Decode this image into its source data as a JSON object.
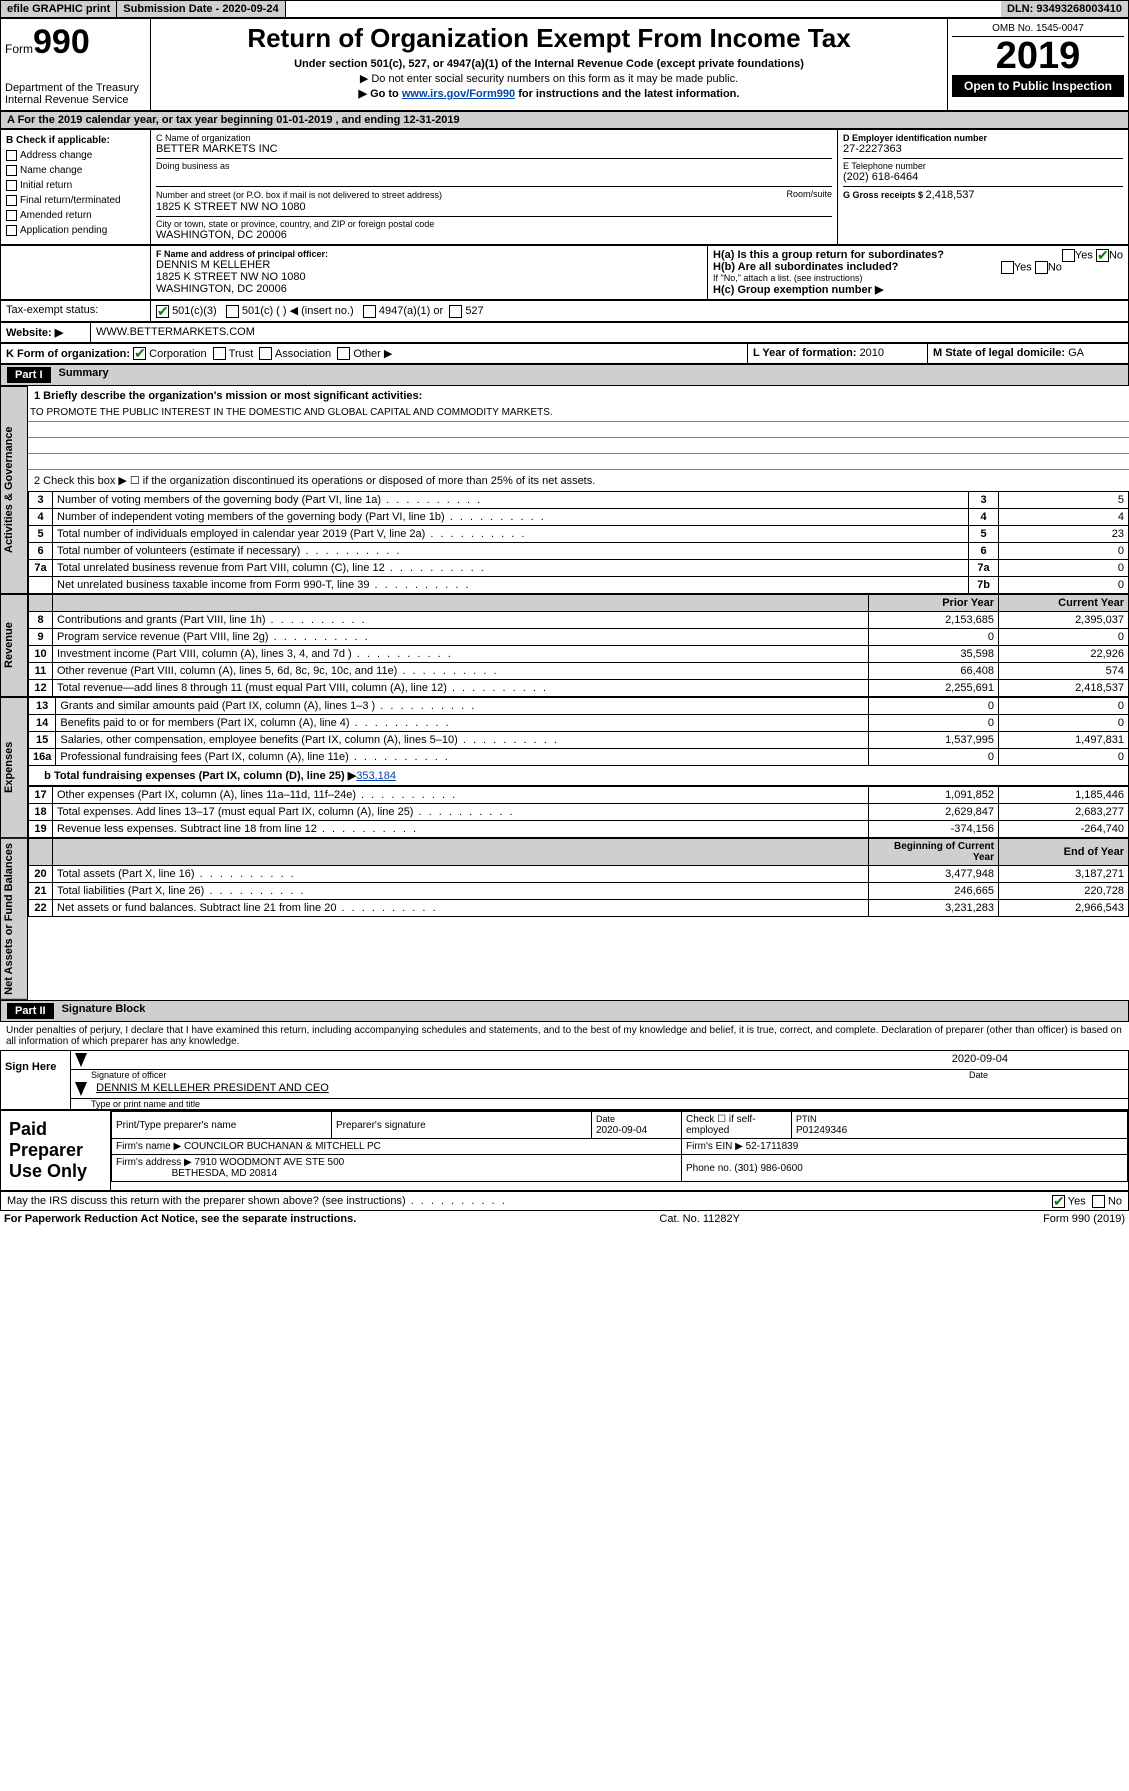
{
  "topbar": {
    "efile": "efile GRAPHIC print",
    "submission_label": "Submission Date - 2020-09-24",
    "dln": "DLN: 93493268003410"
  },
  "header": {
    "form": "Form",
    "form_num": "990",
    "dept": "Department of the Treasury",
    "irs": "Internal Revenue Service",
    "title": "Return of Organization Exempt From Income Tax",
    "subtitle": "Under section 501(c), 527, or 4947(a)(1) of the Internal Revenue Code (except private foundations)",
    "arrow1": "▶ Do not enter social security numbers on this form as it may be made public.",
    "arrow2_pre": "▶ Go to ",
    "arrow2_link": "www.irs.gov/Form990",
    "arrow2_post": " for instructions and the latest information.",
    "omb": "OMB No. 1545-0047",
    "year": "2019",
    "open": "Open to Public Inspection"
  },
  "period": {
    "line": "A For the 2019 calendar year, or tax year beginning 01-01-2019   , and ending 12-31-2019"
  },
  "checkcol": {
    "heading": "B Check if applicable:",
    "items": [
      "Address change",
      "Name change",
      "Initial return",
      "Final return/terminated",
      "Amended return",
      "Application pending"
    ]
  },
  "org": {
    "c_label": "C Name of organization",
    "name": "BETTER MARKETS INC",
    "dba_label": "Doing business as",
    "addr_label": "Number and street (or P.O. box if mail is not delivered to street address)",
    "room_label": "Room/suite",
    "addr": "1825 K STREET NW NO 1080",
    "city_label": "City or town, state or province, country, and ZIP or foreign postal code",
    "city": "WASHINGTON, DC  20006",
    "d_label": "D Employer identification number",
    "ein": "27-2227363",
    "e_label": "E Telephone number",
    "phone": "(202) 618-6464",
    "g_label": "G Gross receipts $ ",
    "g_val": "2,418,537"
  },
  "officer": {
    "f_label": "F  Name and address of principal officer:",
    "name": "DENNIS M KELLEHER",
    "addr1": "1825 K STREET NW NO 1080",
    "addr2": "WASHINGTON, DC  20006"
  },
  "hblock": {
    "ha": "H(a)  Is this a group return for subordinates?",
    "hb": "H(b)  Are all subordinates included?",
    "hb_note": "If \"No,\" attach a list. (see instructions)",
    "hc": "H(c)  Group exemption number ▶",
    "yes": "Yes",
    "no": "No"
  },
  "tax_exempt": {
    "label": "Tax-exempt status:",
    "c3": "501(c)(3)",
    "c_other": "501(c) (   ) ◀ (insert no.)",
    "a1": "4947(a)(1) or",
    "s527": "527"
  },
  "website": {
    "label": "Website: ▶",
    "value": "WWW.BETTERMARKETS.COM"
  },
  "korg": {
    "label": "K Form of organization:",
    "corp": "Corporation",
    "trust": "Trust",
    "assoc": "Association",
    "other": "Other ▶",
    "l_label": "L Year of formation: ",
    "l_val": "2010",
    "m_label": "M State of legal domicile: ",
    "m_val": "GA"
  },
  "part1": {
    "title": "Part I",
    "name": "Summary"
  },
  "summary": {
    "l1_label": "1  Briefly describe the organization's mission or most significant activities:",
    "l1_text": "TO PROMOTE THE PUBLIC INTEREST IN THE DOMESTIC AND GLOBAL CAPITAL AND COMMODITY MARKETS.",
    "l2": "2   Check this box ▶ ☐  if the organization discontinued its operations or disposed of more than 25% of its net assets.",
    "rows_top": [
      {
        "n": "3",
        "t": "Number of voting members of the governing body (Part VI, line 1a)",
        "k": "3",
        "v": "5"
      },
      {
        "n": "4",
        "t": "Number of independent voting members of the governing body (Part VI, line 1b)",
        "k": "4",
        "v": "4"
      },
      {
        "n": "5",
        "t": "Total number of individuals employed in calendar year 2019 (Part V, line 2a)",
        "k": "5",
        "v": "23"
      },
      {
        "n": "6",
        "t": "Total number of volunteers (estimate if necessary)",
        "k": "6",
        "v": "0"
      },
      {
        "n": "7a",
        "t": "Total unrelated business revenue from Part VIII, column (C), line 12",
        "k": "7a",
        "v": "0"
      },
      {
        "n": "",
        "t": "Net unrelated business taxable income from Form 990-T, line 39",
        "k": "7b",
        "v": "0"
      }
    ],
    "py_label": "Prior Year",
    "cy_label": "Current Year",
    "rev_rows": [
      {
        "n": "8",
        "t": "Contributions and grants (Part VIII, line 1h)",
        "py": "2,153,685",
        "cy": "2,395,037"
      },
      {
        "n": "9",
        "t": "Program service revenue (Part VIII, line 2g)",
        "py": "0",
        "cy": "0"
      },
      {
        "n": "10",
        "t": "Investment income (Part VIII, column (A), lines 3, 4, and 7d )",
        "py": "35,598",
        "cy": "22,926"
      },
      {
        "n": "11",
        "t": "Other revenue (Part VIII, column (A), lines 5, 6d, 8c, 9c, 10c, and 11e)",
        "py": "66,408",
        "cy": "574"
      },
      {
        "n": "12",
        "t": "Total revenue—add lines 8 through 11 (must equal Part VIII, column (A), line 12)",
        "py": "2,255,691",
        "cy": "2,418,537"
      }
    ],
    "exp_rows": [
      {
        "n": "13",
        "t": "Grants and similar amounts paid (Part IX, column (A), lines 1–3 )",
        "py": "0",
        "cy": "0"
      },
      {
        "n": "14",
        "t": "Benefits paid to or for members (Part IX, column (A), line 4)",
        "py": "0",
        "cy": "0"
      },
      {
        "n": "15",
        "t": "Salaries, other compensation, employee benefits (Part IX, column (A), lines 5–10)",
        "py": "1,537,995",
        "cy": "1,497,831"
      },
      {
        "n": "16a",
        "t": "Professional fundraising fees (Part IX, column (A), line 11e)",
        "py": "0",
        "cy": "0"
      }
    ],
    "l16b_pre": "b  Total fundraising expenses (Part IX, column (D), line 25) ▶",
    "l16b_val": "353,184",
    "exp_rows2": [
      {
        "n": "17",
        "t": "Other expenses (Part IX, column (A), lines 11a–11d, 11f–24e)",
        "py": "1,091,852",
        "cy": "1,185,446"
      },
      {
        "n": "18",
        "t": "Total expenses. Add lines 13–17 (must equal Part IX, column (A), line 25)",
        "py": "2,629,847",
        "cy": "2,683,277"
      },
      {
        "n": "19",
        "t": "Revenue less expenses. Subtract line 18 from line 12",
        "py": "-374,156",
        "cy": "-264,740"
      }
    ],
    "boy_label": "Beginning of Current Year",
    "eoy_label": "End of Year",
    "net_rows": [
      {
        "n": "20",
        "t": "Total assets (Part X, line 16)",
        "py": "3,477,948",
        "cy": "3,187,271"
      },
      {
        "n": "21",
        "t": "Total liabilities (Part X, line 26)",
        "py": "246,665",
        "cy": "220,728"
      },
      {
        "n": "22",
        "t": "Net assets or fund balances. Subtract line 21 from line 20",
        "py": "3,231,283",
        "cy": "2,966,543"
      }
    ]
  },
  "part2": {
    "title": "Part II",
    "name": "Signature Block"
  },
  "sig": {
    "decl": "Under penalties of perjury, I declare that I have examined this return, including accompanying schedules and statements, and to the best of my knowledge and belief, it is true, correct, and complete. Declaration of preparer (other than officer) is based on all information of which preparer has any knowledge.",
    "sign_here": "Sign Here",
    "sig_officer": "Signature of officer",
    "date1": "2020-09-04",
    "date_label": "Date",
    "typed": "DENNIS M KELLEHER  PRESIDENT AND CEO",
    "typed_label": "Type or print name and title"
  },
  "prep": {
    "title": "Paid Preparer Use Only",
    "c1": "Print/Type preparer's name",
    "c2": "Preparer's signature",
    "c3_label": "Date",
    "c3": "2020-09-04",
    "c4_label": "Check ☐ if self-employed",
    "c5_label": "PTIN",
    "c5": "P01249346",
    "firm_label": "Firm's name    ▶",
    "firm": "COUNCILOR BUCHANAN & MITCHELL PC",
    "ein_label": "Firm's EIN ▶ ",
    "ein": "52-1711839",
    "addr_label": "Firm's address ▶",
    "addr1": "7910 WOODMONT AVE STE 500",
    "addr2": "BETHESDA, MD  20814",
    "phone_label": "Phone no. ",
    "phone": "(301) 986-0600"
  },
  "discuss": {
    "text": "May the IRS discuss this return with the preparer shown above? (see instructions)",
    "yes": "Yes",
    "no": "No"
  },
  "footer": {
    "left": "For Paperwork Reduction Act Notice, see the separate instructions.",
    "mid": "Cat. No. 11282Y",
    "right": "Form 990 (2019)"
  },
  "vlabels": {
    "gov": "Activities & Governance",
    "rev": "Revenue",
    "exp": "Expenses",
    "net": "Net Assets or Fund Balances"
  }
}
